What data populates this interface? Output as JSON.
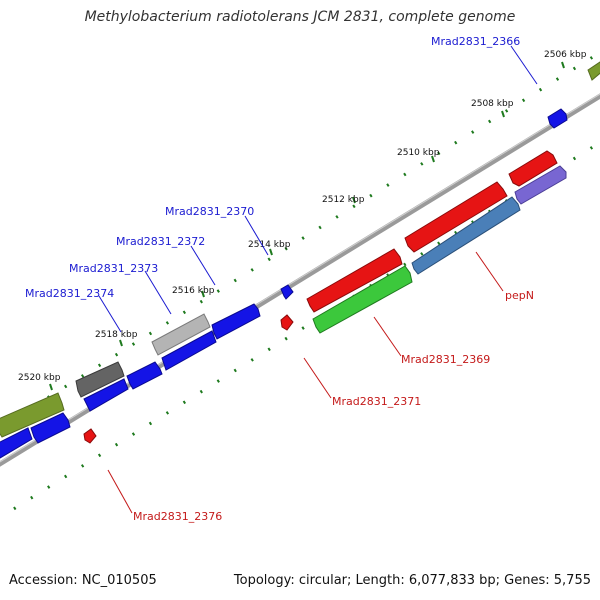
{
  "title": "Methylobacterium radiotolerans JCM 2831, complete genome",
  "footer": {
    "accession_label": "Accession: NC_010505",
    "topology_label": "Topology: circular; Length: 6,077,833 bp; Genes: 5,755"
  },
  "colors": {
    "forward_gene": "#1414e6",
    "reverse_gene": "#e61414",
    "green_gene": "#3cc83c",
    "olive_gene": "#7a9a2e",
    "steelblue_gene": "#4a7fb8",
    "purple_gene": "#7866d2",
    "grey_gene": "#b4b4b4",
    "darkgrey_gene": "#646464",
    "backbone": "#8a8a8a",
    "tick": "#1e7a1e",
    "fwd_label": "#1b1bd1",
    "rev_label": "#c41a1a"
  },
  "ticks": [
    {
      "label": "2506 kbp"
    },
    {
      "label": "2508 kbp"
    },
    {
      "label": "2510 kbp"
    },
    {
      "label": "2512 kbp"
    },
    {
      "label": "2514 kbp"
    },
    {
      "label": "2516 kbp"
    },
    {
      "label": "2518 kbp"
    },
    {
      "label": "2520 kbp"
    }
  ],
  "gene_labels": {
    "forward": [
      "Mrad2831_2366",
      "Mrad2831_2370",
      "Mrad2831_2372",
      "Mrad2831_2373",
      "Mrad2831_2374"
    ],
    "reverse": [
      "pepN",
      "Mrad2831_2369",
      "Mrad2831_2371",
      "Mrad2831_2376"
    ]
  }
}
